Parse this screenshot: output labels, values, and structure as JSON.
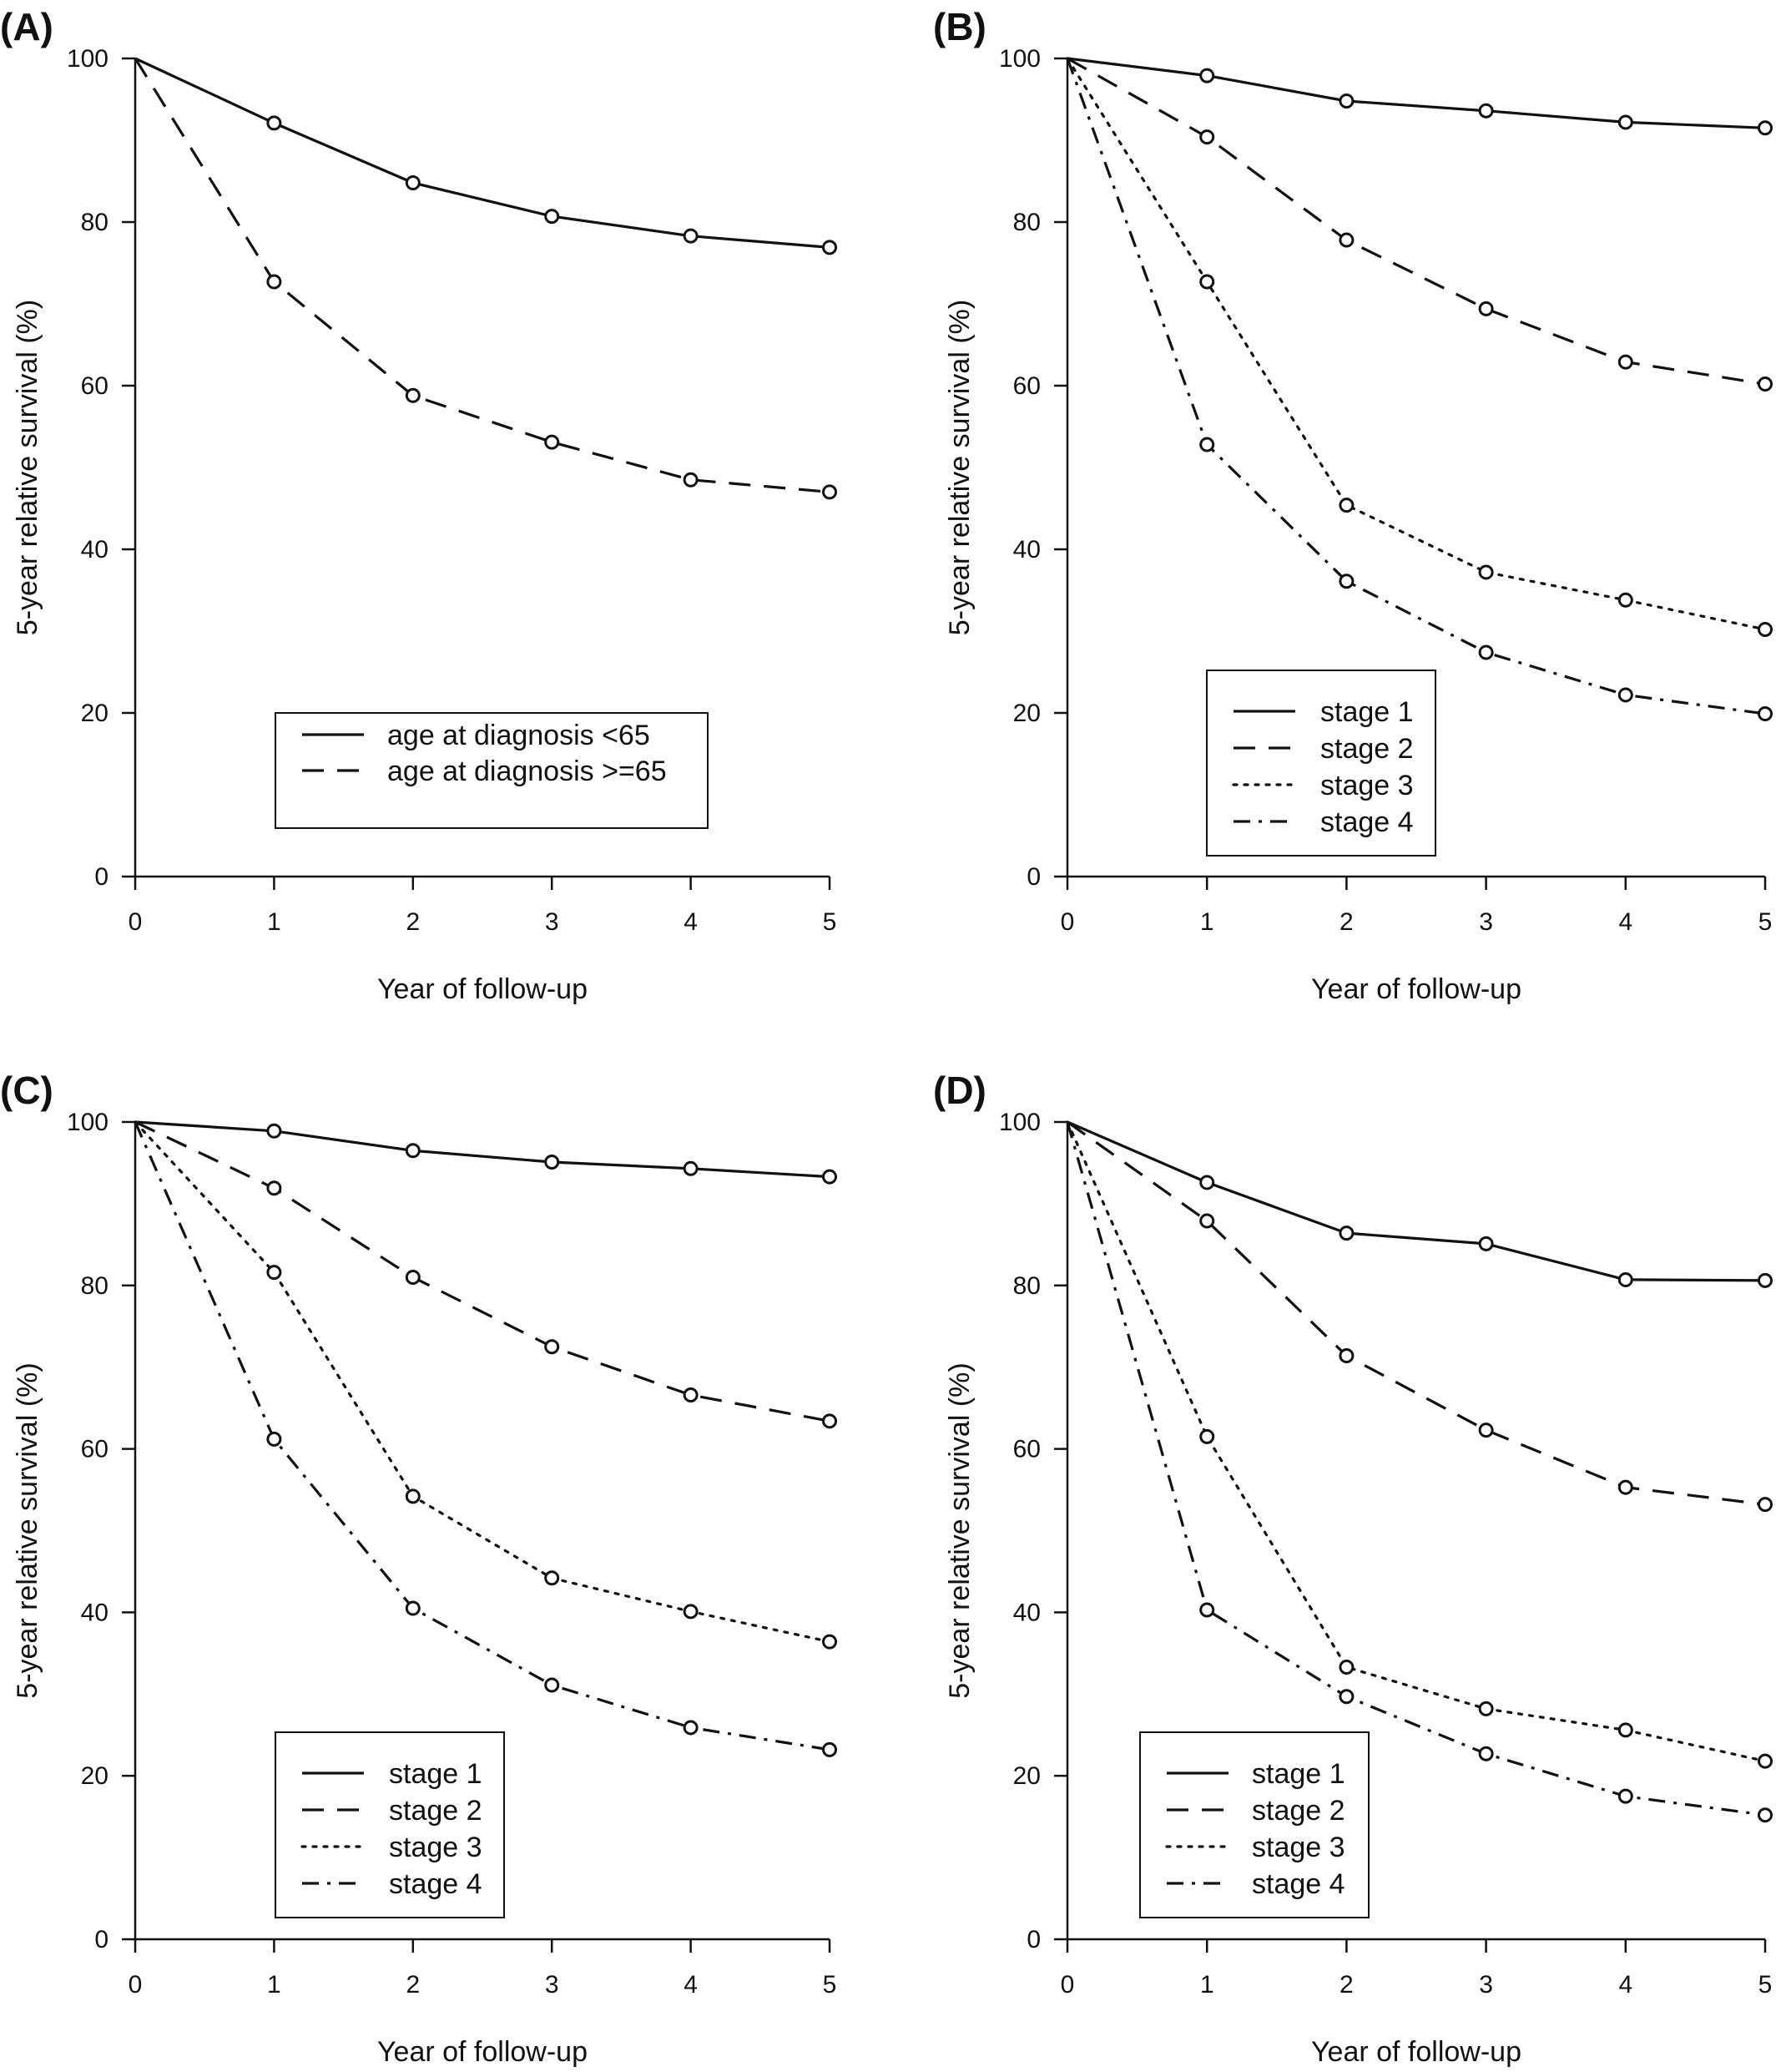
{
  "figure": {
    "styles": {
      "solid": "",
      "dashed": "26,16",
      "dotted": "4,9",
      "dashdot": "20,10,4,10"
    },
    "line_color": "#111111"
  },
  "chart_data": [
    {
      "panel": "(A)",
      "type": "line",
      "xlabel": "Year of follow-up",
      "ylabel": "5-year relative survival (%)",
      "xlim": [
        0,
        5
      ],
      "ylim": [
        0,
        100
      ],
      "xticks": [
        0,
        1,
        2,
        3,
        4,
        5
      ],
      "yticks": [
        0,
        20,
        40,
        60,
        80,
        100
      ],
      "x": [
        0,
        1,
        2,
        3,
        4,
        5
      ],
      "legend_position": "center-bottom",
      "series": [
        {
          "name": "age at diagnosis <65",
          "style": "solid",
          "values": [
            100,
            92.1,
            84.8,
            80.7,
            78.3,
            76.9
          ]
        },
        {
          "name": "age at diagnosis >=65",
          "style": "dashed",
          "values": [
            100,
            72.7,
            58.8,
            53.1,
            48.5,
            47.0
          ]
        }
      ]
    },
    {
      "panel": "(B)",
      "type": "line",
      "xlabel": "Year of follow-up",
      "ylabel": "5-year relative survival (%)",
      "xlim": [
        0,
        5
      ],
      "ylim": [
        0,
        100
      ],
      "xticks": [
        0,
        1,
        2,
        3,
        4,
        5
      ],
      "yticks": [
        0,
        20,
        40,
        60,
        80,
        100
      ],
      "x": [
        0,
        1,
        2,
        3,
        4,
        5
      ],
      "legend_position": "bottom-center",
      "series": [
        {
          "name": "stage 1",
          "style": "solid",
          "values": [
            100,
            97.9,
            94.8,
            93.6,
            92.2,
            91.5
          ]
        },
        {
          "name": "stage 2",
          "style": "dashed",
          "values": [
            100,
            90.4,
            77.8,
            69.4,
            62.9,
            60.2
          ]
        },
        {
          "name": "stage 3",
          "style": "dotted",
          "values": [
            100,
            72.7,
            45.4,
            37.2,
            33.8,
            30.2
          ]
        },
        {
          "name": "stage 4",
          "style": "dashdot",
          "values": [
            100,
            52.8,
            36.1,
            27.4,
            22.2,
            19.9
          ]
        }
      ]
    },
    {
      "panel": "(C)",
      "type": "line",
      "xlabel": "Year of follow-up",
      "ylabel": "5-year relative survival (%)",
      "xlim": [
        0,
        5
      ],
      "ylim": [
        0,
        100
      ],
      "xticks": [
        0,
        1,
        2,
        3,
        4,
        5
      ],
      "yticks": [
        0,
        20,
        40,
        60,
        80,
        100
      ],
      "x": [
        0,
        1,
        2,
        3,
        4,
        5
      ],
      "legend_position": "bottom-center",
      "series": [
        {
          "name": "stage 1",
          "style": "solid",
          "values": [
            100,
            98.9,
            96.5,
            95.1,
            94.3,
            93.3
          ]
        },
        {
          "name": "stage 2",
          "style": "dashed",
          "values": [
            100,
            91.9,
            81.0,
            72.5,
            66.6,
            63.4
          ]
        },
        {
          "name": "stage 3",
          "style": "dotted",
          "values": [
            100,
            81.6,
            54.2,
            44.2,
            40.1,
            36.4
          ]
        },
        {
          "name": "stage 4",
          "style": "dashdot",
          "values": [
            100,
            61.2,
            40.5,
            31.1,
            25.9,
            23.2
          ]
        }
      ]
    },
    {
      "panel": "(D)",
      "type": "line",
      "xlabel": "Year of follow-up",
      "ylabel": "5-year relative survival (%)",
      "xlim": [
        0,
        5
      ],
      "ylim": [
        0,
        100
      ],
      "xticks": [
        0,
        1,
        2,
        3,
        4,
        5
      ],
      "yticks": [
        0,
        20,
        40,
        60,
        80,
        100
      ],
      "x": [
        0,
        1,
        2,
        3,
        4,
        5
      ],
      "legend_position": "bottom-center",
      "series": [
        {
          "name": "stage 1",
          "style": "solid",
          "values": [
            100,
            92.6,
            86.4,
            85.1,
            80.7,
            80.6
          ]
        },
        {
          "name": "stage 2",
          "style": "dashed",
          "values": [
            100,
            87.9,
            71.4,
            62.3,
            55.3,
            53.2
          ]
        },
        {
          "name": "stage 3",
          "style": "dotted",
          "values": [
            100,
            61.5,
            33.3,
            28.2,
            25.6,
            21.8
          ]
        },
        {
          "name": "stage 4",
          "style": "dashdot",
          "values": [
            100,
            40.3,
            29.7,
            22.7,
            17.5,
            15.2
          ]
        }
      ]
    }
  ]
}
